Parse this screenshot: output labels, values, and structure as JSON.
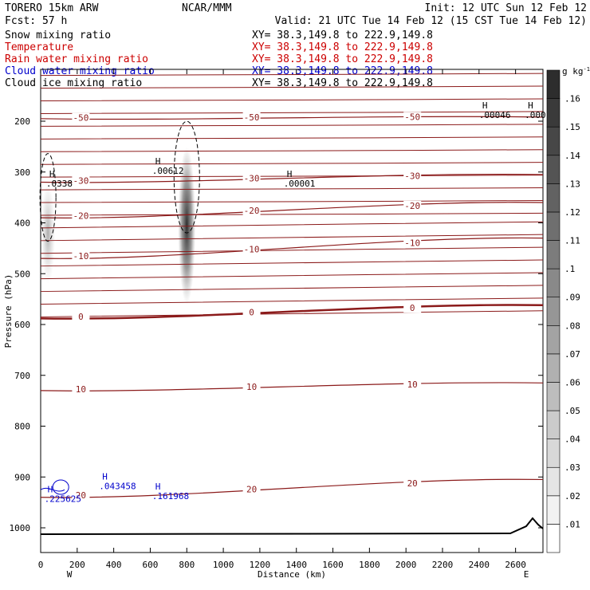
{
  "header": {
    "model": "TORERO   15km ARW",
    "org": "NCAR/MMM",
    "init": "Init: 12 UTC Sun 12 Feb 12",
    "fcst": "Fcst:   57 h",
    "valid": "Valid: 21 UTC Tue 14 Feb 12 (15 CST Tue 14 Feb 12)"
  },
  "fields": [
    {
      "name": "Snow mixing ratio",
      "xy": "XY=  38.3,149.8 to 222.9,149.8",
      "color": "#000000"
    },
    {
      "name": "Temperature",
      "xy": "XY=  38.3,149.8 to 222.9,149.8",
      "color": "#cc0000"
    },
    {
      "name": "Rain water mixing ratio",
      "xy": "XY=  38.3,149.8 to 222.9,149.8",
      "color": "#cc0000"
    },
    {
      "name": "Cloud water mixing ratio",
      "xy": "XY=  38.3,149.8 to 222.9,149.8",
      "color": "#0000cc"
    },
    {
      "name": "Cloud ice mixing ratio",
      "xy": "XY=  38.3,149.8 to 222.9,149.8",
      "color": "#000000"
    }
  ],
  "chart_data": {
    "type": "heatmap",
    "xlabel": "Distance (km)",
    "ylabel": "Pressure (hPa)",
    "xlim": [
      0,
      2750
    ],
    "ylim": [
      1050,
      100
    ],
    "x_ticks": [
      "0",
      "200",
      "400",
      "600",
      "800",
      "1000",
      "1200",
      "1400",
      "1600",
      "1800",
      "2000",
      "2200",
      "2400",
      "2600"
    ],
    "y_ticks": [
      "200",
      "300",
      "400",
      "500",
      "600",
      "700",
      "800",
      "900",
      "1000"
    ],
    "x_end_labels": {
      "left": "W",
      "right": "E"
    },
    "colorbar": {
      "units": "g kg",
      "units_exp": "-1",
      "levels": [
        ".01",
        ".02",
        ".03",
        ".04",
        ".05",
        ".06",
        ".07",
        ".08",
        ".09",
        ".1",
        ".11",
        ".12",
        ".13",
        ".14",
        ".15",
        ".16"
      ]
    },
    "snow_cores": [
      {
        "x": 800,
        "p_top": 250,
        "p_bottom": 560,
        "max": 0.16
      },
      {
        "x": 40,
        "p_top": 320,
        "p_bottom": 520,
        "max": 0.05
      }
    ],
    "temperature_isotherms": [
      {
        "label": "-50",
        "p_left": 195,
        "p_right": 192
      },
      {
        "label": "-30",
        "p_left": 320,
        "p_right": 305
      },
      {
        "label": "-20",
        "p_left": 390,
        "p_right": 360
      },
      {
        "label": "-10",
        "p_left": 470,
        "p_right": 430
      },
      {
        "label": "0",
        "p_left": 588,
        "p_right": 562
      },
      {
        "label": "10",
        "p_left": 730,
        "p_right": 715
      },
      {
        "label": "20",
        "p_left": 940,
        "p_right": 905
      }
    ],
    "extrema": [
      {
        "kind": "H",
        "value": ".00612",
        "x": 610,
        "p": 285,
        "color": "#000000"
      },
      {
        "kind": "H",
        "value": ".00001",
        "x": 1330,
        "p": 310,
        "color": "#000000"
      },
      {
        "kind": "H",
        "value": ".00046",
        "x": 2400,
        "p": 175,
        "color": "#000000"
      },
      {
        "kind": "H",
        "value": ".000",
        "x": 2650,
        "p": 175,
        "color": "#000000"
      },
      {
        "kind": "H",
        "value": ".0338",
        "x": 30,
        "p": 310,
        "color": "#000000"
      },
      {
        "kind": "H",
        "value": ".043458",
        "x": 320,
        "p": 905,
        "color": "#0000cc"
      },
      {
        "kind": "H",
        "value": ".161968",
        "x": 610,
        "p": 925,
        "color": "#0000cc"
      },
      {
        "kind": "H",
        "value": ".225625",
        "x": 20,
        "p": 930,
        "color": "#0000cc"
      }
    ]
  }
}
